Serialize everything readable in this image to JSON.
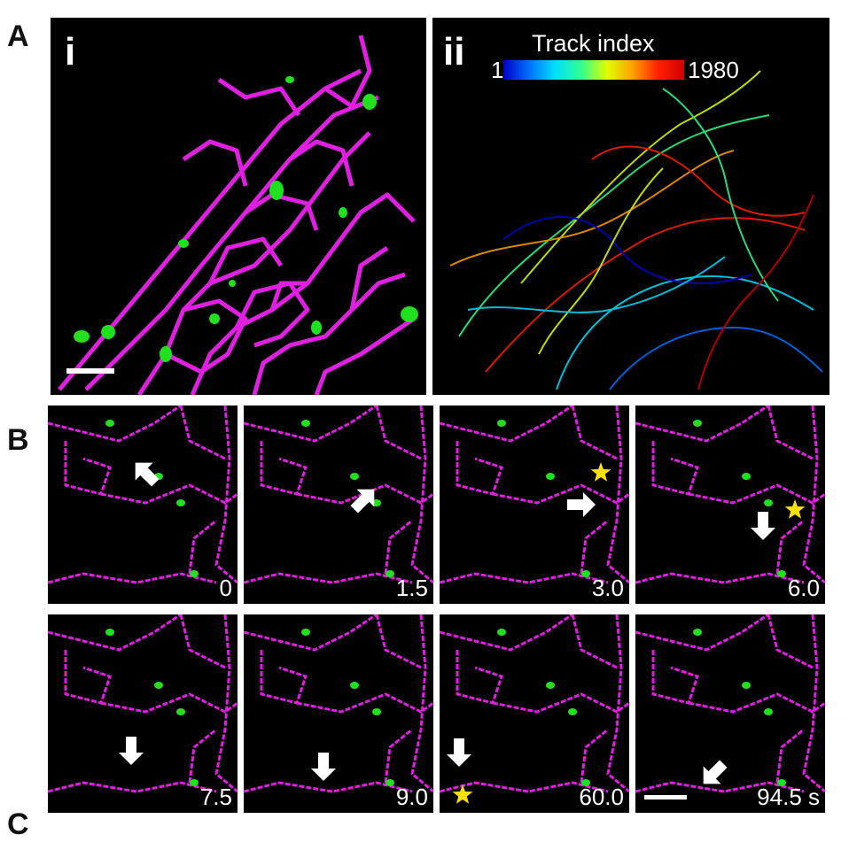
{
  "panels": {
    "A": {
      "letter": "A",
      "i": {
        "label": "i"
      },
      "ii": {
        "label": "ii",
        "colorbar": {
          "title": "Track index",
          "min": "1",
          "max": "1980",
          "colors": [
            "#0000c8",
            "#0070ff",
            "#00e0ff",
            "#30ff90",
            "#e0ff00",
            "#ffa000",
            "#ff2000",
            "#d00000"
          ]
        }
      }
    },
    "B": {
      "letter": "B",
      "frames": [
        {
          "time": "0",
          "arrow": "up-left",
          "star": false
        },
        {
          "time": "1.5",
          "arrow": "up-right",
          "star": false
        },
        {
          "time": "3.0",
          "arrow": "right",
          "star": true
        },
        {
          "time": "6.0",
          "arrow": "down",
          "star": true
        },
        {
          "time": "7.5",
          "arrow": "down",
          "star": false
        },
        {
          "time": "9.0",
          "arrow": "down",
          "star": false
        },
        {
          "time": "60.0",
          "arrow": "down",
          "star": true
        },
        {
          "time": "94.5 s",
          "arrow": "down-left",
          "star": false
        }
      ]
    },
    "C": {
      "letter": "C"
    }
  },
  "colors": {
    "membrane": "#e020e0",
    "puncta": "#20e020",
    "arrow": "#ffffff",
    "star": "#ffe000"
  }
}
